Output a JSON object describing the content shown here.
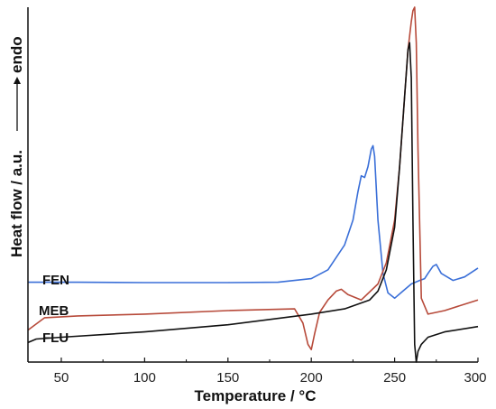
{
  "chart_data": {
    "type": "line",
    "xlabel": "Temperature / °C",
    "ylabel": "Heat flow / a.u.",
    "ylabel_arrow": "endo",
    "xlim": [
      30,
      300
    ],
    "ylim": [
      0,
      100
    ],
    "xticks": [
      50,
      100,
      150,
      200,
      250,
      300
    ],
    "grid": false,
    "legend": "none",
    "series": [
      {
        "name": "FEN",
        "color": "#3a6fd8",
        "x": [
          30,
          60,
          100,
          150,
          180,
          200,
          210,
          220,
          225,
          228,
          230,
          232,
          234,
          236,
          237,
          238,
          240,
          243,
          246,
          250,
          255,
          260,
          265,
          268,
          270,
          273,
          275,
          278,
          285,
          292,
          300
        ],
        "y": [
          22.5,
          22.5,
          22.4,
          22.4,
          22.5,
          23.5,
          26,
          33,
          40,
          48,
          52.5,
          52,
          55,
          60,
          61,
          58,
          40,
          25,
          19.5,
          18,
          20,
          22,
          23,
          23.5,
          25,
          27,
          27.5,
          25,
          23,
          24,
          26.5
        ]
      },
      {
        "name": "MEB",
        "color": "#b74a3a",
        "x": [
          30,
          40,
          60,
          100,
          150,
          190,
          195,
          198,
          200,
          202,
          205,
          210,
          215,
          218,
          222,
          230,
          240,
          245,
          250,
          253,
          256,
          258,
          260,
          261,
          262,
          263,
          264,
          266,
          270,
          280,
          300
        ],
        "y": [
          9,
          12.5,
          13,
          13.5,
          14.5,
          15,
          11,
          5,
          3.5,
          8,
          14,
          17.5,
          20,
          20.5,
          19,
          17.5,
          22,
          28,
          40,
          55,
          75,
          88,
          96,
          99,
          100,
          90,
          60,
          18,
          13.5,
          14.5,
          17.5
        ]
      },
      {
        "name": "FLU",
        "color": "#111111",
        "x": [
          30,
          35,
          50,
          100,
          150,
          200,
          220,
          235,
          240,
          245,
          250,
          253,
          256,
          258,
          259,
          260,
          261,
          262,
          263,
          264,
          266,
          270,
          280,
          300
        ],
        "y": [
          5.5,
          6.5,
          7,
          8.5,
          10.5,
          13.5,
          15,
          17.5,
          20,
          26,
          38,
          55,
          75,
          88,
          90,
          80,
          40,
          5,
          0,
          3,
          5,
          7,
          8.5,
          10
        ]
      }
    ]
  }
}
